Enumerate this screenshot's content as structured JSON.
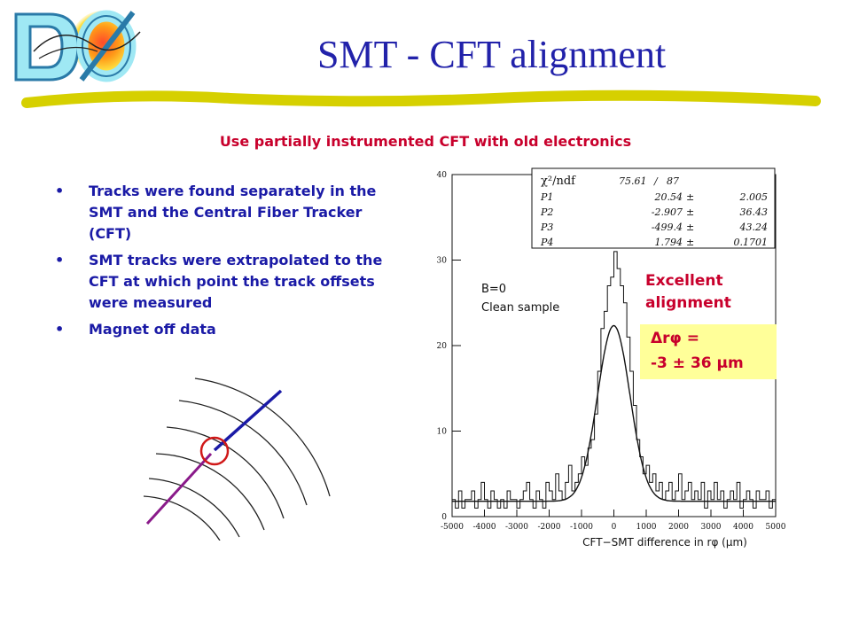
{
  "page": {
    "title": "SMT - CFT alignment",
    "subtitle": "Use partially instrumented CFT with old electronics",
    "bullet_symbol": "•",
    "bullets": [
      "Tracks were found separately in the SMT and the Central Fiber Tracker (CFT)",
      "SMT tracks were extrapolated to the CFT at which point the track offsets were measured",
      "Magnet off data"
    ],
    "logo_text": "DØ",
    "colors": {
      "title": "#2222aa",
      "subtitle": "#c8002c",
      "bullets": "#1a1aa6",
      "underline": "#d6d000",
      "highlight_box": "#ffff99",
      "track_smt": "#1a1aa6",
      "track_cft": "#8a1a8a",
      "circle": "#d01818"
    }
  },
  "annotations": {
    "excellent_line1": "Excellent",
    "excellent_line2": "alignment",
    "result_line1": "Δrφ =",
    "result_line2": "-3 ± 36 μm"
  },
  "chart_data": {
    "type": "histogram",
    "xlabel": "CFT−SMT difference in rφ (μm)",
    "xlim": [
      -5000,
      5000
    ],
    "ylim": [
      0,
      40
    ],
    "x_ticks": [
      -5000,
      -4000,
      -3000,
      -2000,
      -1000,
      0,
      1000,
      2000,
      3000,
      4000,
      5000
    ],
    "y_ticks": [
      0,
      10,
      20,
      30,
      40
    ],
    "bin_edges_start": -5000,
    "bin_width": 100,
    "counts": [
      2,
      1,
      3,
      1,
      2,
      2,
      3,
      1,
      2,
      4,
      2,
      1,
      3,
      2,
      1,
      2,
      1,
      3,
      2,
      2,
      1,
      2,
      3,
      4,
      2,
      1,
      3,
      2,
      1,
      4,
      3,
      2,
      5,
      3,
      2,
      4,
      6,
      3,
      4,
      5,
      7,
      6,
      8,
      9,
      12,
      17,
      22,
      24,
      27,
      28,
      31,
      29,
      27,
      25,
      21,
      17,
      13,
      9,
      7,
      5,
      6,
      4,
      5,
      3,
      4,
      2,
      3,
      4,
      2,
      3,
      5,
      2,
      3,
      4,
      2,
      3,
      2,
      4,
      1,
      3,
      2,
      4,
      2,
      3,
      1,
      2,
      3,
      2,
      4,
      1,
      2,
      3,
      2,
      1,
      3,
      2,
      2,
      3,
      1,
      2
    ],
    "fit": {
      "type": "gaussian+constant",
      "p1": 20.54,
      "p2": -2.907,
      "p3": -499.4,
      "p4": 1.794
    },
    "stats_box": {
      "chi2_label": "χ²/ndf",
      "chi2": "75.61",
      "ndf": "87",
      "rows": [
        {
          "name": "P1",
          "value": "20.54",
          "error": "2.005"
        },
        {
          "name": "P2",
          "value": "-2.907",
          "error": "36.43"
        },
        {
          "name": "P3",
          "value": "-499.4",
          "error": "43.24"
        },
        {
          "name": "P4",
          "value": "1.794",
          "error": "0.1701"
        }
      ]
    },
    "legend": {
      "line1": "B=0",
      "line2": "Clean sample"
    }
  }
}
